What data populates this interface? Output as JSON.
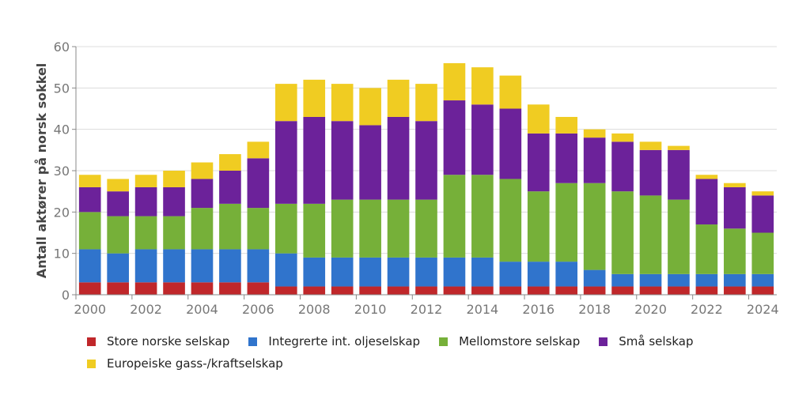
{
  "chart_data": {
    "type": "bar",
    "stacked": true,
    "title": "",
    "xlabel": "",
    "ylabel": "Antall aktører på norsk sokkel",
    "ylim": [
      0,
      60
    ],
    "yticks": [
      0,
      10,
      20,
      30,
      40,
      50,
      60
    ],
    "xtick_labels": [
      "2000",
      "2002",
      "2004",
      "2006",
      "2008",
      "2010",
      "2012",
      "2014",
      "2016",
      "2018",
      "2020",
      "2022",
      "2024"
    ],
    "grid": true,
    "legend_position": "bottom",
    "categories": [
      "2000",
      "2001",
      "2002",
      "2003",
      "2004",
      "2005",
      "2006",
      "2007",
      "2008",
      "2009",
      "2010",
      "2011",
      "2012",
      "2013",
      "2014",
      "2015",
      "2016",
      "2017",
      "2018",
      "2019",
      "2020",
      "2021",
      "2022",
      "2023",
      "2024"
    ],
    "series": [
      {
        "name": "Store norske selskap",
        "color": "#c0272a",
        "values": [
          3,
          3,
          3,
          3,
          3,
          3,
          3,
          2,
          2,
          2,
          2,
          2,
          2,
          2,
          2,
          2,
          2,
          2,
          2,
          2,
          2,
          2,
          2,
          2,
          2
        ]
      },
      {
        "name": "Integrerte int. oljeselskap",
        "color": "#3074cc",
        "values": [
          8,
          7,
          8,
          8,
          8,
          8,
          8,
          8,
          7,
          7,
          7,
          7,
          7,
          7,
          7,
          6,
          6,
          6,
          4,
          3,
          3,
          3,
          3,
          3,
          3
        ]
      },
      {
        "name": "Mellomstore selskap",
        "color": "#76b039",
        "values": [
          9,
          9,
          8,
          8,
          10,
          11,
          10,
          12,
          13,
          14,
          14,
          14,
          14,
          20,
          20,
          20,
          17,
          19,
          21,
          20,
          19,
          18,
          12,
          11,
          10
        ]
      },
      {
        "name": "Små selskap",
        "color": "#6c229a",
        "values": [
          6,
          6,
          7,
          7,
          7,
          8,
          12,
          20,
          21,
          19,
          18,
          20,
          19,
          18,
          17,
          17,
          14,
          12,
          11,
          12,
          11,
          12,
          11,
          10,
          9
        ]
      },
      {
        "name": "Europeiske gass-/kraftselskap",
        "color": "#f0cc22",
        "values": [
          3,
          3,
          3,
          4,
          4,
          4,
          4,
          9,
          9,
          9,
          9,
          9,
          9,
          9,
          9,
          8,
          7,
          4,
          2,
          2,
          2,
          1,
          1,
          1,
          1
        ]
      }
    ]
  }
}
